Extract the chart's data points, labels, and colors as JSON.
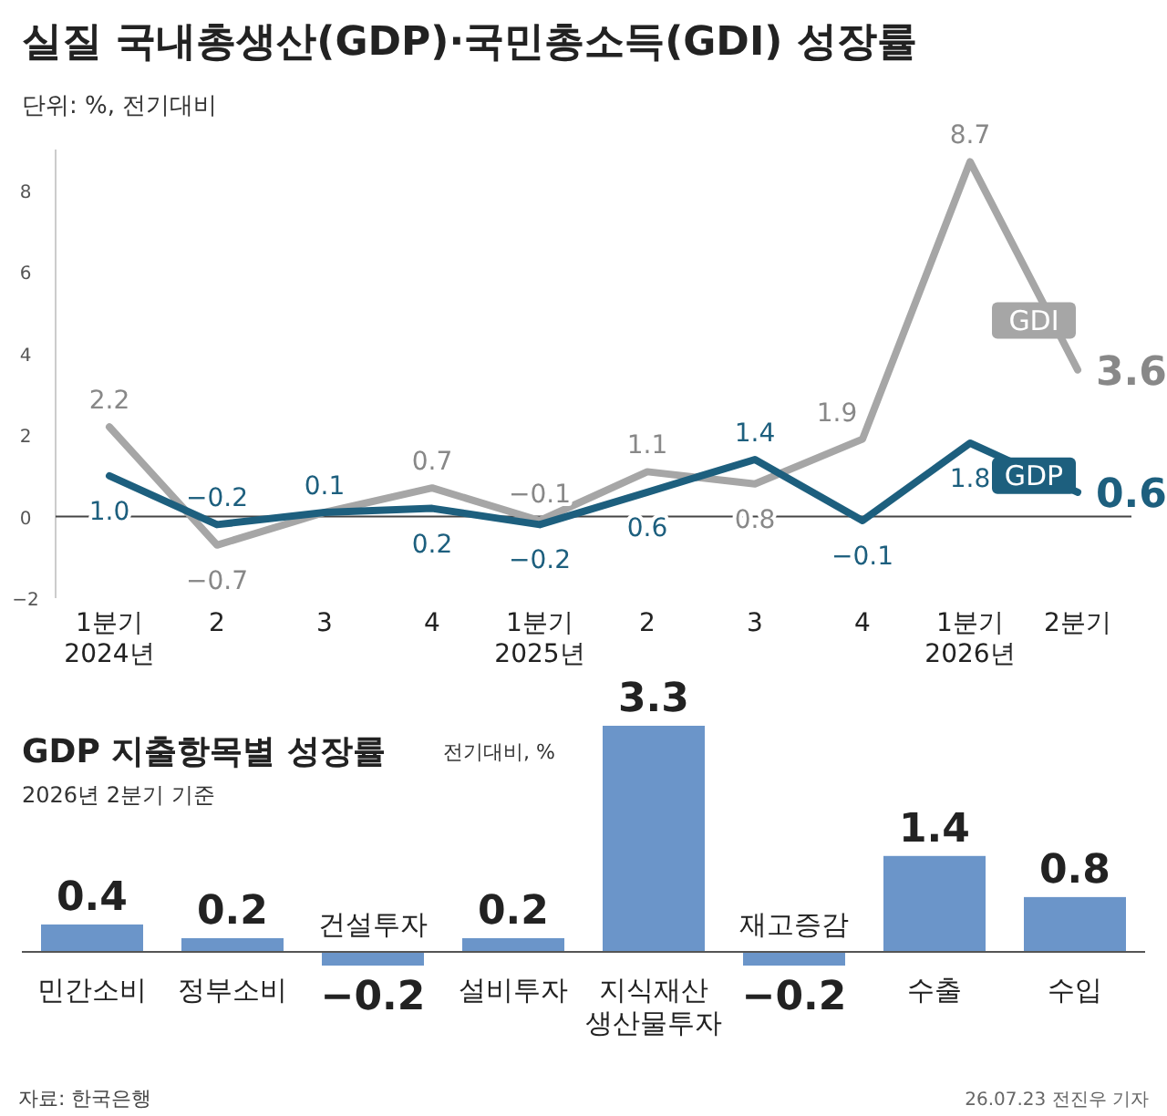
{
  "chart_data": [
    {
      "type": "line",
      "title": "실질 국내총생산(GDP)·국민총소득(GDI) 성장률",
      "subtitle": "단위: %, 전기대비",
      "categories": [
        "1분기\n2024년",
        "2",
        "3",
        "4",
        "1분기\n2025년",
        "2",
        "3",
        "4",
        "1분기\n2026년",
        "2분기"
      ],
      "series": [
        {
          "name": "GDI",
          "color": "#a6a6a6",
          "values": [
            2.2,
            -0.7,
            0.1,
            0.7,
            -0.1,
            1.1,
            0.8,
            1.9,
            8.7,
            3.6
          ],
          "value_labels": [
            "2.2",
            "−0.7",
            null,
            "0.7",
            "−0.1",
            "1.1",
            "0.8",
            "1.9",
            "8.7",
            "3.6"
          ]
        },
        {
          "name": "GDP",
          "color": "#1d5f7e",
          "values": [
            1.0,
            -0.2,
            0.1,
            0.2,
            -0.2,
            0.6,
            1.4,
            -0.1,
            1.8,
            0.6
          ],
          "value_labels": [
            "1.0",
            "−0.2",
            "0.1",
            "0.2",
            "−0.2",
            "0.6",
            "1.4",
            "−0.1",
            "1.8",
            "0.6"
          ]
        }
      ],
      "ylim": [
        -2,
        9
      ],
      "ref_lines": [
        {
          "axis": "y",
          "value": 0,
          "color": "#444444"
        }
      ],
      "yticks": [
        {
          "value": -2,
          "label": "−2"
        },
        0,
        2,
        4,
        6,
        8
      ],
      "grid": false,
      "legend": false,
      "marker": "none",
      "line_style": "solid"
    },
    {
      "type": "bar",
      "title": "GDP 지출항목별 성장률",
      "subtitle": "전기대비, %",
      "categories": [
        "민간소비",
        "정부소비",
        "건설투자",
        "설비투자",
        "지식재산\n생산물투자",
        "재고증감",
        "수출",
        "수입"
      ],
      "values": [
        0.4,
        0.2,
        -0.2,
        0.2,
        3.3,
        -0.2,
        1.4,
        0.8
      ],
      "color": "#6b95c9",
      "value_labels": [
        "0.4",
        "0.2",
        "−0.2",
        "0.2",
        "3.3",
        "−0.2",
        "1.4",
        "0.8"
      ],
      "annotations": [
        "2026년 2분기 기준",
        "자료: 한국은행",
        "26.07.23 전진우 기자"
      ]
    }
  ]
}
